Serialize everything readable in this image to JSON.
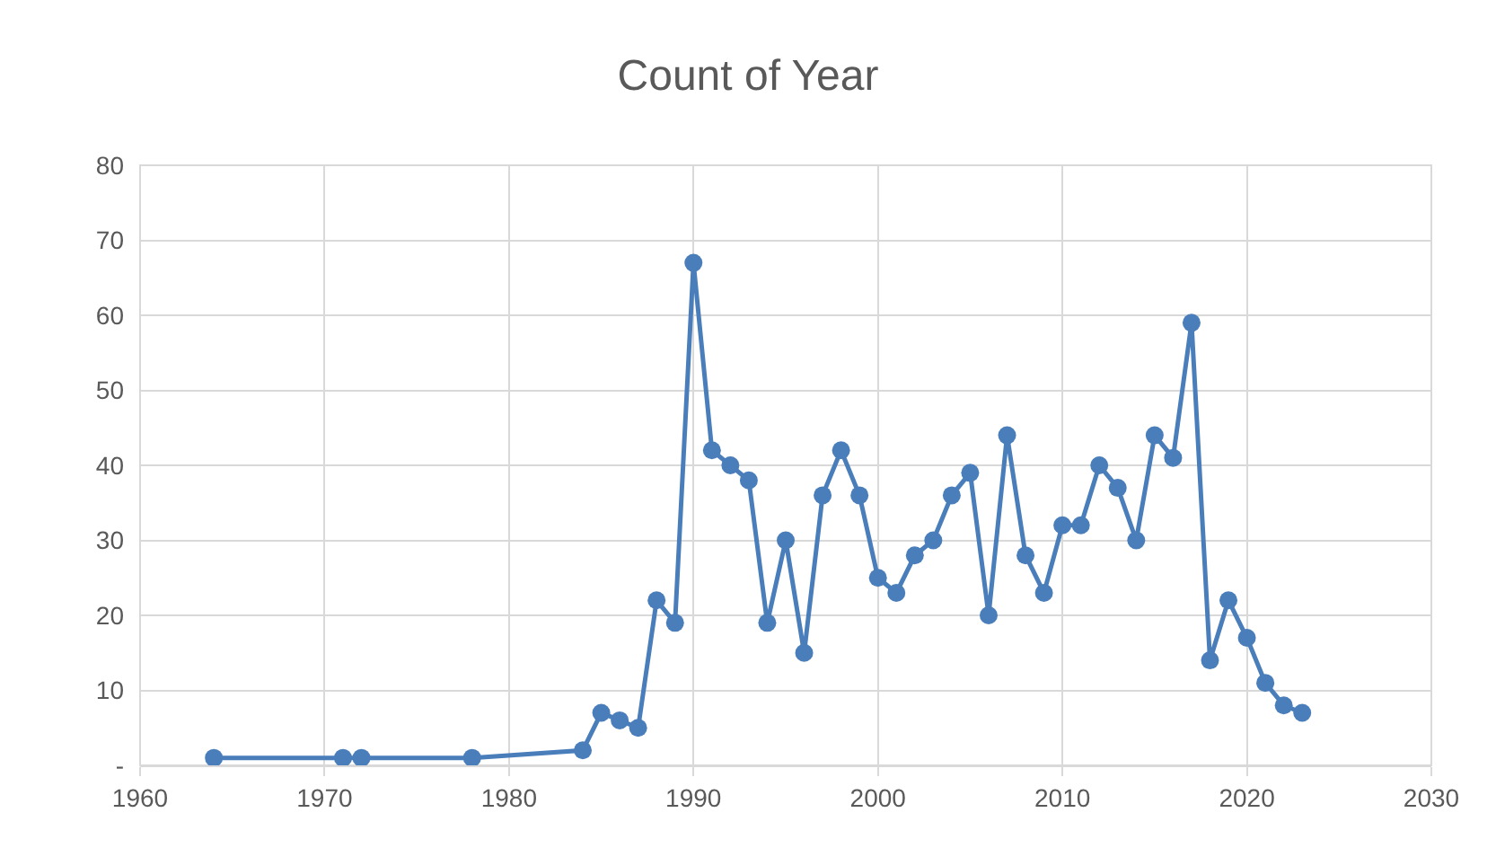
{
  "chart_data": {
    "type": "line",
    "title": "Count of Year",
    "x": [
      1964,
      1971,
      1972,
      1978,
      1984,
      1985,
      1986,
      1987,
      1988,
      1989,
      1990,
      1991,
      1992,
      1993,
      1994,
      1995,
      1996,
      1997,
      1998,
      1999,
      2000,
      2001,
      2002,
      2003,
      2004,
      2005,
      2006,
      2007,
      2008,
      2009,
      2010,
      2011,
      2012,
      2013,
      2014,
      2015,
      2016,
      2017,
      2018,
      2019,
      2020,
      2021,
      2022,
      2023
    ],
    "series": [
      {
        "color": "#4a7ebb",
        "values": [
          1,
          1,
          1,
          1,
          2,
          7,
          6,
          5,
          22,
          19,
          67,
          42,
          40,
          38,
          19,
          30,
          15,
          36,
          42,
          36,
          25,
          23,
          28,
          30,
          36,
          39,
          20,
          44,
          28,
          23,
          32,
          32,
          40,
          37,
          30,
          44,
          41,
          59,
          14,
          22,
          17,
          11,
          8,
          7
        ]
      }
    ],
    "xlim": [
      1960,
      2030
    ],
    "xticks": [
      1960,
      1970,
      1980,
      1990,
      2000,
      2010,
      2020,
      2030
    ],
    "ylim": [
      0,
      80
    ],
    "yticks": [
      {
        "value": 0,
        "label": "-"
      },
      10,
      20,
      30,
      40,
      50,
      60,
      70,
      80
    ],
    "grid": true,
    "marker": "circle",
    "line_style": "solid"
  }
}
